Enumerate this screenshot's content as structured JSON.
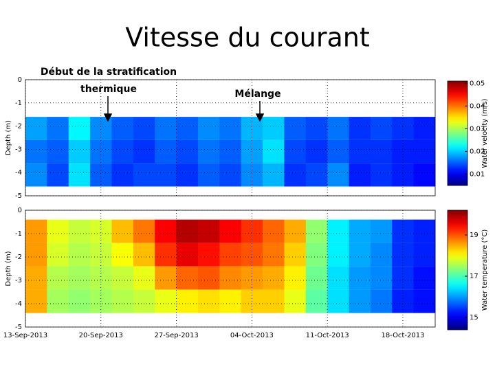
{
  "title": "Vitesse du courant",
  "chart_data": [
    {
      "type": "heatmap",
      "ylabel": "Depth (m)",
      "colorbar_label": "Water velocity (m/s)",
      "colormap": "jet",
      "annotations": [
        [
          "Début de la stratification",
          "thermique"
        ],
        [
          "Mélange"
        ]
      ],
      "xlim": [
        "2013-09-13",
        "2013-10-21"
      ],
      "xticks": [
        "2013-09-13",
        "2013-09-20",
        "2013-09-27",
        "2013-10-04",
        "2013-10-11",
        "2013-10-18"
      ],
      "ylim": [
        -5,
        0
      ],
      "yticks": [
        0,
        -1,
        -2,
        -3,
        -4,
        -5
      ],
      "grid": true,
      "x_edges": [
        "2013-09-13",
        "2013-09-15",
        "2013-09-17",
        "2013-09-19",
        "2013-09-21",
        "2013-09-23",
        "2013-09-25",
        "2013-09-27",
        "2013-09-29",
        "2013-10-01",
        "2013-10-03",
        "2013-10-05",
        "2013-10-07",
        "2013-10-09",
        "2013-10-11",
        "2013-10-13",
        "2013-10-15",
        "2013-10-17",
        "2013-10-19",
        "2013-10-21"
      ],
      "y_edges": [
        -1.6,
        -2.6,
        -3.6,
        -4.6
      ],
      "values": [
        [
          0.018,
          0.016,
          0.022,
          0.017,
          0.015,
          0.014,
          0.016,
          0.015,
          0.017,
          0.016,
          0.019,
          0.02,
          0.015,
          0.014,
          0.016,
          0.013,
          0.014,
          0.013,
          0.012
        ],
        [
          0.016,
          0.015,
          0.02,
          0.016,
          0.014,
          0.013,
          0.015,
          0.014,
          0.016,
          0.015,
          0.018,
          0.021,
          0.014,
          0.013,
          0.015,
          0.013,
          0.013,
          0.012,
          0.012
        ],
        [
          0.017,
          0.014,
          0.021,
          0.015,
          0.013,
          0.014,
          0.014,
          0.013,
          0.015,
          0.014,
          0.017,
          0.019,
          0.013,
          0.014,
          0.017,
          0.012,
          0.013,
          0.012,
          0.011
        ]
      ],
      "clim": [
        0.005,
        0.051
      ],
      "cticks": [
        0.05,
        0.04,
        0.03,
        0.02,
        0.01
      ]
    },
    {
      "type": "heatmap",
      "ylabel": "Depth (m)",
      "colorbar_label": "Water temperature (°C)",
      "colormap": "jet",
      "xlim": [
        "2013-09-13",
        "2013-10-21"
      ],
      "xticks": [
        {
          "value": "2013-09-13",
          "label": "13-Sep-2013"
        },
        {
          "value": "2013-09-20",
          "label": "20-Sep-2013"
        },
        {
          "value": "2013-09-27",
          "label": "27-Sep-2013"
        },
        {
          "value": "2013-10-04",
          "label": "04-Oct-2013"
        },
        {
          "value": "2013-10-11",
          "label": "11-Oct-2013"
        },
        {
          "value": "2013-10-18",
          "label": "18-Oct-2013"
        }
      ],
      "ylim": [
        -5,
        0
      ],
      "yticks": [
        0,
        -1,
        -2,
        -3,
        -4,
        -5
      ],
      "grid": true,
      "x_edges": [
        "2013-09-13",
        "2013-09-15",
        "2013-09-17",
        "2013-09-19",
        "2013-09-21",
        "2013-09-23",
        "2013-09-25",
        "2013-09-27",
        "2013-09-29",
        "2013-10-01",
        "2013-10-03",
        "2013-10-05",
        "2013-10-07",
        "2013-10-09",
        "2013-10-11",
        "2013-10-13",
        "2013-10-15",
        "2013-10-17",
        "2013-10-19",
        "2013-10-21"
      ],
      "y_edges": [
        -0.4,
        -1.4,
        -2.4,
        -3.4,
        -4.4
      ],
      "values": [
        [
          18.6,
          17.9,
          17.7,
          17.8,
          18.4,
          18.8,
          19.5,
          19.9,
          19.8,
          19.5,
          19.2,
          18.9,
          18.5,
          17.4,
          16.5,
          16.1,
          16.0,
          15.4,
          15.3
        ],
        [
          18.6,
          17.8,
          17.6,
          17.7,
          18.0,
          18.4,
          19.2,
          19.6,
          19.4,
          19.1,
          19.0,
          18.8,
          18.3,
          17.3,
          16.5,
          16.1,
          15.9,
          15.4,
          15.3
        ],
        [
          18.5,
          17.6,
          17.5,
          17.6,
          17.7,
          17.9,
          18.6,
          18.9,
          19.0,
          18.7,
          18.6,
          18.5,
          18.1,
          17.2,
          16.4,
          16.0,
          15.9,
          15.4,
          15.2
        ],
        [
          18.5,
          17.5,
          17.4,
          17.5,
          17.6,
          17.7,
          17.9,
          18.1,
          18.2,
          18.1,
          18.3,
          18.3,
          17.9,
          17.1,
          16.4,
          16.0,
          15.8,
          15.3,
          15.2
        ]
      ],
      "clim": [
        14.4,
        20.2
      ],
      "cticks": [
        19,
        17,
        15
      ]
    }
  ]
}
